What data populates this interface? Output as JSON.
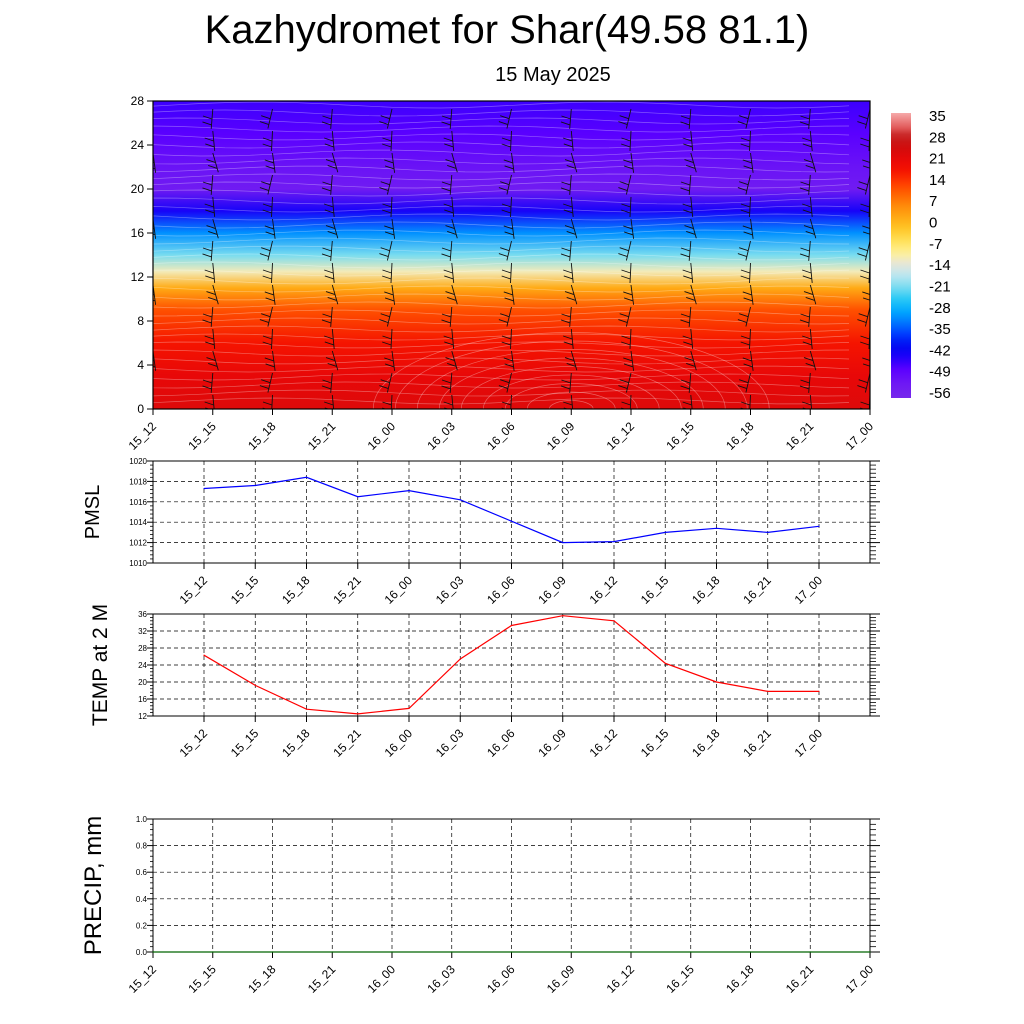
{
  "title": "Kazhydromet for Shar(49.58 81.1)",
  "subtitle": "15 May 2025",
  "time_labels": [
    "15_12",
    "15_15",
    "15_18",
    "15_21",
    "16_00",
    "16_03",
    "16_06",
    "16_09",
    "16_12",
    "16_15",
    "16_18",
    "16_21",
    "17_00"
  ],
  "chart_data": [
    {
      "type": "heatmap",
      "title": "",
      "xlabel": "",
      "ylabel": "",
      "x": [
        "15_12",
        "15_15",
        "15_18",
        "15_21",
        "16_00",
        "16_03",
        "16_06",
        "16_09",
        "16_12",
        "16_15",
        "16_18",
        "16_21",
        "17_00"
      ],
      "y_ticks": [
        0,
        4,
        8,
        12,
        16,
        20,
        24,
        28
      ],
      "ylim": [
        0,
        28
      ],
      "colorbar_labels": [
        "35",
        "28",
        "21",
        "14",
        "7",
        "0",
        "-7",
        "-14",
        "-21",
        "-28",
        "-35",
        "-42",
        "-49",
        "-56"
      ],
      "colorbar_range": [
        -60,
        38
      ],
      "layers": [
        {
          "level": 0,
          "value": 24
        },
        {
          "level": 3,
          "value": 22
        },
        {
          "level": 6,
          "value": 18
        },
        {
          "level": 9,
          "value": 12
        },
        {
          "level": 11,
          "value": 2
        },
        {
          "level": 12.5,
          "value": -12
        },
        {
          "level": 14,
          "value": -22
        },
        {
          "level": 16,
          "value": -32
        },
        {
          "level": 18,
          "value": -45
        },
        {
          "level": 20,
          "value": -56
        },
        {
          "level": 22,
          "value": -54
        },
        {
          "level": 25,
          "value": -50
        },
        {
          "level": 28,
          "value": -48
        }
      ],
      "hot_spot": {
        "center_x": "16_09",
        "level": 0,
        "value": 36
      },
      "wind_barbs": true
    },
    {
      "type": "line",
      "ylabel": "PMSL",
      "x": [
        "15_12",
        "15_15",
        "15_18",
        "15_21",
        "16_00",
        "16_03",
        "16_06",
        "16_09",
        "16_12",
        "16_15",
        "16_18",
        "16_21",
        "17_00"
      ],
      "ylim": [
        1010,
        1020
      ],
      "y_ticks": [
        1010,
        1012,
        1014,
        1016,
        1018,
        1020
      ],
      "grid": true,
      "series": [
        {
          "values": [
            1017.3,
            1017.6,
            1018.4,
            1016.5,
            1017.1,
            1016.2,
            1014.1,
            1012.0,
            1012.1,
            1013.0,
            1013.4,
            1013.0,
            1013.6
          ],
          "color": "#0000ff"
        }
      ]
    },
    {
      "type": "line",
      "ylabel": "TEMP at 2 M",
      "x": [
        "15_12",
        "15_15",
        "15_18",
        "15_21",
        "16_00",
        "16_03",
        "16_06",
        "16_09",
        "16_12",
        "16_15",
        "16_18",
        "16_21",
        "17_00"
      ],
      "ylim": [
        12,
        36
      ],
      "y_ticks": [
        12,
        16,
        20,
        24,
        28,
        32,
        36
      ],
      "grid": true,
      "series": [
        {
          "values": [
            26.3,
            19.2,
            13.6,
            12.5,
            13.8,
            25.4,
            33.3,
            35.6,
            34.4,
            24.4,
            20.0,
            17.8,
            17.8
          ],
          "color": "#ff0000"
        }
      ]
    },
    {
      "type": "line",
      "ylabel": "PRECIP, mm",
      "x": [
        "15_12",
        "15_15",
        "15_18",
        "15_21",
        "16_00",
        "16_03",
        "16_06",
        "16_09",
        "16_12",
        "16_15",
        "16_18",
        "16_21",
        "17_00"
      ],
      "ylim": [
        0,
        1
      ],
      "y_ticks": [
        "0.0",
        "0.2",
        "0.4",
        "0.6",
        "0.8",
        "1.0"
      ],
      "grid": true,
      "series": [
        {
          "values": [
            0,
            0,
            0,
            0,
            0,
            0,
            0,
            0,
            0,
            0,
            0,
            0,
            0
          ],
          "color": "#006400"
        }
      ]
    }
  ]
}
